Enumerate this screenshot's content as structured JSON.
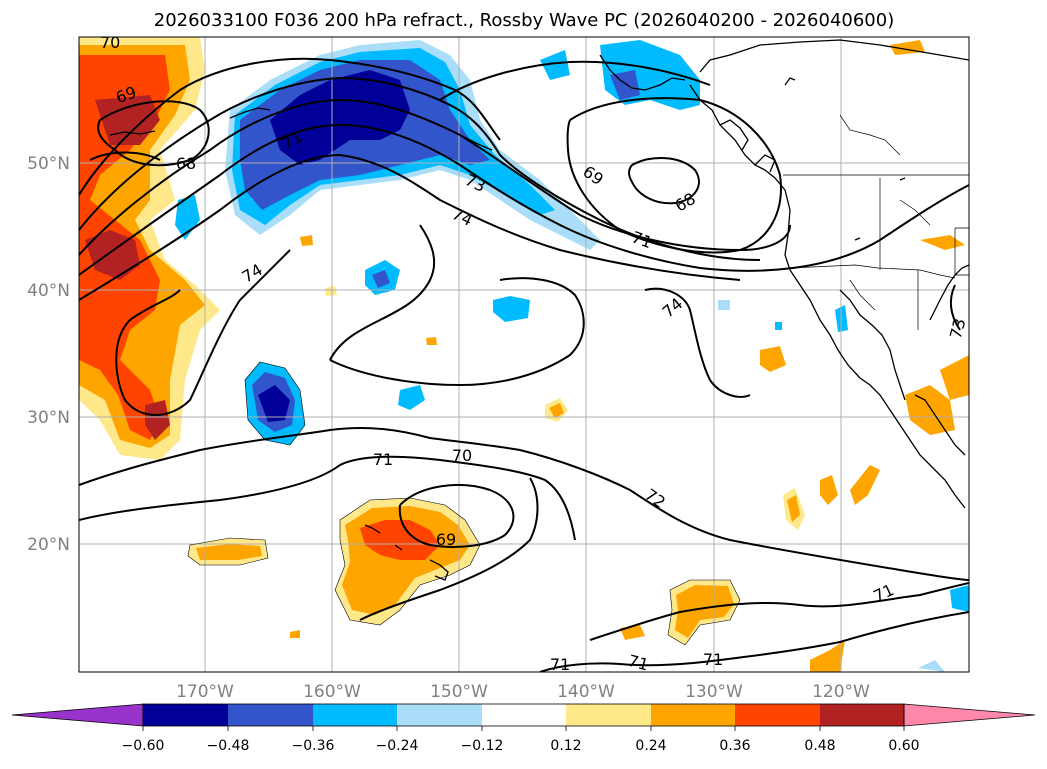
{
  "title": "2026033100 F036 200 hPa refract., Rossby Wave PC (2026040200 - 2026040600)",
  "lat_labels": [
    "50°N",
    "40°N",
    "30°N",
    "20°N"
  ],
  "lon_labels": [
    "170°W",
    "160°W",
    "150°W",
    "140°W",
    "130°W",
    "120°W"
  ],
  "colorbar": {
    "ticks": [
      "−0.60",
      "−0.48",
      "−0.36",
      "−0.24",
      "−0.12",
      "0.12",
      "0.24",
      "0.36",
      "0.48",
      "0.60"
    ],
    "colors": [
      "#9933cc",
      "#000099",
      "#3355cc",
      "#00bbff",
      "#aaddf8",
      "#ffffff",
      "#ffe88a",
      "#ffa500",
      "#ff4400",
      "#b22222",
      "#ff88aa"
    ]
  },
  "contour_labels": [
    {
      "text": "70",
      "name": "contour-label-70-nw"
    },
    {
      "text": "69",
      "name": "contour-label-69-nw"
    },
    {
      "text": "68",
      "name": "contour-label-68-nw"
    },
    {
      "text": "71",
      "name": "contour-label-71-nw"
    },
    {
      "text": "73",
      "name": "contour-label-73-central"
    },
    {
      "text": "74",
      "name": "contour-label-74-central"
    },
    {
      "text": "74",
      "name": "contour-label-74-west"
    },
    {
      "text": "69",
      "name": "contour-label-69-ne"
    },
    {
      "text": "68",
      "name": "contour-label-68-ne"
    },
    {
      "text": "71",
      "name": "contour-label-71-ne"
    },
    {
      "text": "74",
      "name": "contour-label-74-east"
    },
    {
      "text": "73",
      "name": "contour-label-73-edge"
    },
    {
      "text": "71",
      "name": "contour-label-71-south"
    },
    {
      "text": "70",
      "name": "contour-label-70-south"
    },
    {
      "text": "69",
      "name": "contour-label-69-south"
    },
    {
      "text": "72",
      "name": "contour-label-72-south"
    },
    {
      "text": "71",
      "name": "contour-label-71-se"
    },
    {
      "text": "71",
      "name": "contour-label-71-bottom-a"
    },
    {
      "text": "71",
      "name": "contour-label-71-bottom-b"
    },
    {
      "text": "71",
      "name": "contour-label-71-bottom-c"
    }
  ]
}
